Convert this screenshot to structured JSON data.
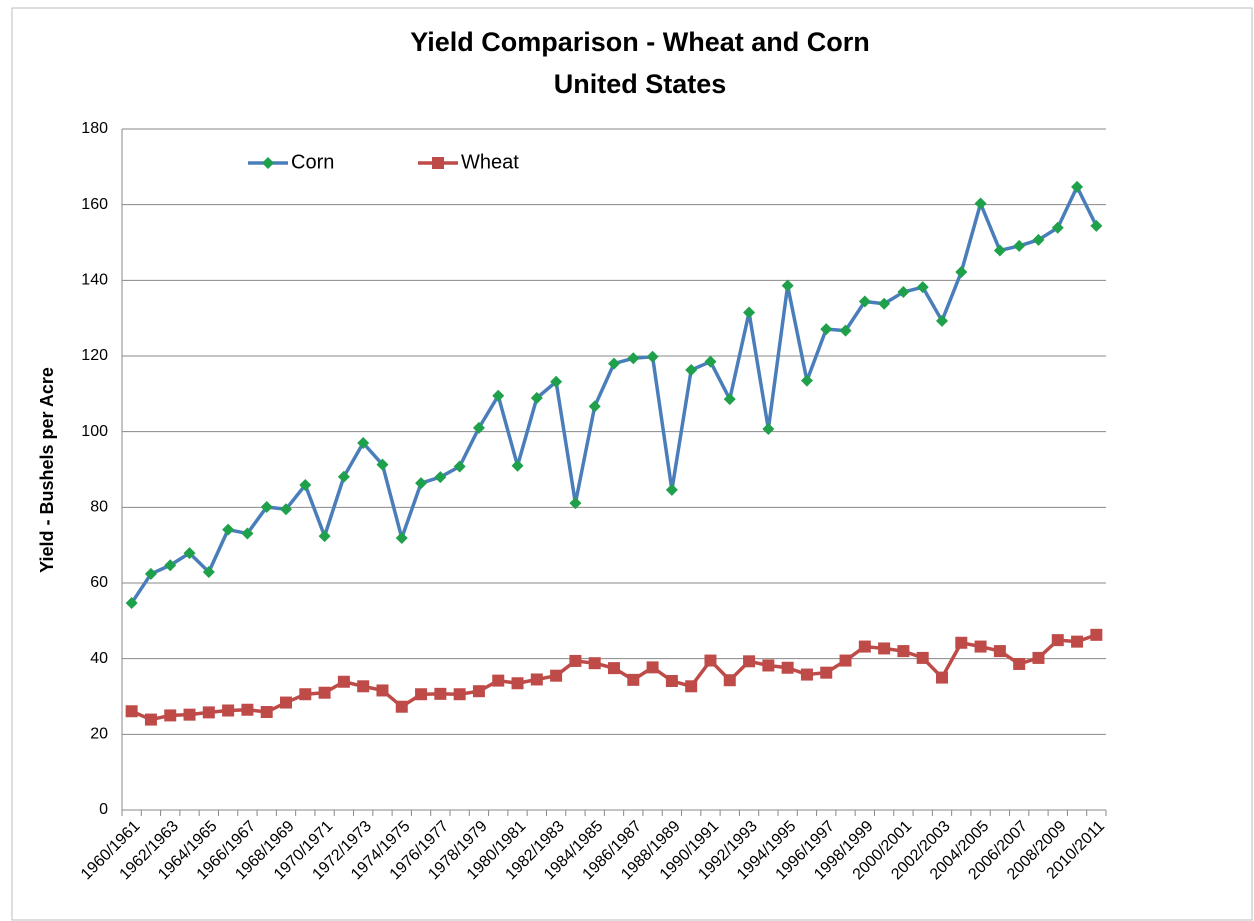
{
  "chart_data": {
    "type": "line",
    "title": "Yield Comparison - Wheat and Corn",
    "subtitle": "United States",
    "y_label": "Yield  - Bushels per Acre",
    "categories": [
      "1960/1961",
      null,
      "1962/1963",
      null,
      "1964/1965",
      null,
      "1966/1967",
      null,
      "1968/1969",
      null,
      "1970/1971",
      null,
      "1972/1973",
      null,
      "1974/1975",
      null,
      "1976/1977",
      null,
      "1978/1979",
      null,
      "1980/1981",
      null,
      "1982/1983",
      null,
      "1984/1985",
      null,
      "1986/1987",
      null,
      "1988/1989",
      null,
      "1990/1991",
      null,
      "1992/1993",
      null,
      "1994/1995",
      null,
      "1996/1997",
      null,
      "1998/1999",
      null,
      "2000/2001",
      null,
      "2002/2003",
      null,
      "2004/2005",
      null,
      "2006/2007",
      null,
      "2008/2009",
      null,
      "2010/2011"
    ],
    "series": [
      {
        "name": "Corn",
        "color": "#4a7ebb",
        "marker": "diamond",
        "marker_color": "#1fa04a",
        "values": [
          54.7,
          62.4,
          64.7,
          67.9,
          62.9,
          74.1,
          73.1,
          80.1,
          79.5,
          85.9,
          72.4,
          88.1,
          97.0,
          91.3,
          71.9,
          86.4,
          88.0,
          90.8,
          101.0,
          109.5,
          91.0,
          108.9,
          113.2,
          81.1,
          106.7,
          118.0,
          119.4,
          119.8,
          84.6,
          116.3,
          118.5,
          108.6,
          131.5,
          100.7,
          138.6,
          113.5,
          127.1,
          126.7,
          134.4,
          133.8,
          136.9,
          138.2,
          129.3,
          142.2,
          160.3,
          147.9,
          149.1,
          150.7,
          153.9,
          164.7,
          154.4
        ]
      },
      {
        "name": "Wheat",
        "color": "#be4b48",
        "marker": "square",
        "marker_color": "#be4b48",
        "values": [
          26.1,
          23.9,
          25.0,
          25.2,
          25.8,
          26.3,
          26.5,
          25.9,
          28.4,
          30.6,
          31.0,
          33.9,
          32.7,
          31.6,
          27.3,
          30.6,
          30.7,
          30.6,
          31.4,
          34.2,
          33.5,
          34.5,
          35.5,
          39.4,
          38.8,
          37.5,
          34.4,
          37.7,
          34.1,
          32.7,
          39.5,
          34.3,
          39.3,
          38.2,
          37.6,
          35.8,
          36.3,
          39.5,
          43.2,
          42.7,
          42.0,
          40.2,
          35.0,
          44.2,
          43.2,
          42.0,
          38.6,
          40.2,
          44.9,
          44.5,
          46.3
        ]
      }
    ],
    "ylim": [
      0,
      180
    ],
    "yticks": [
      0,
      20,
      40,
      60,
      80,
      100,
      120,
      140,
      160,
      180
    ],
    "grid": true,
    "legend": "top-left"
  }
}
